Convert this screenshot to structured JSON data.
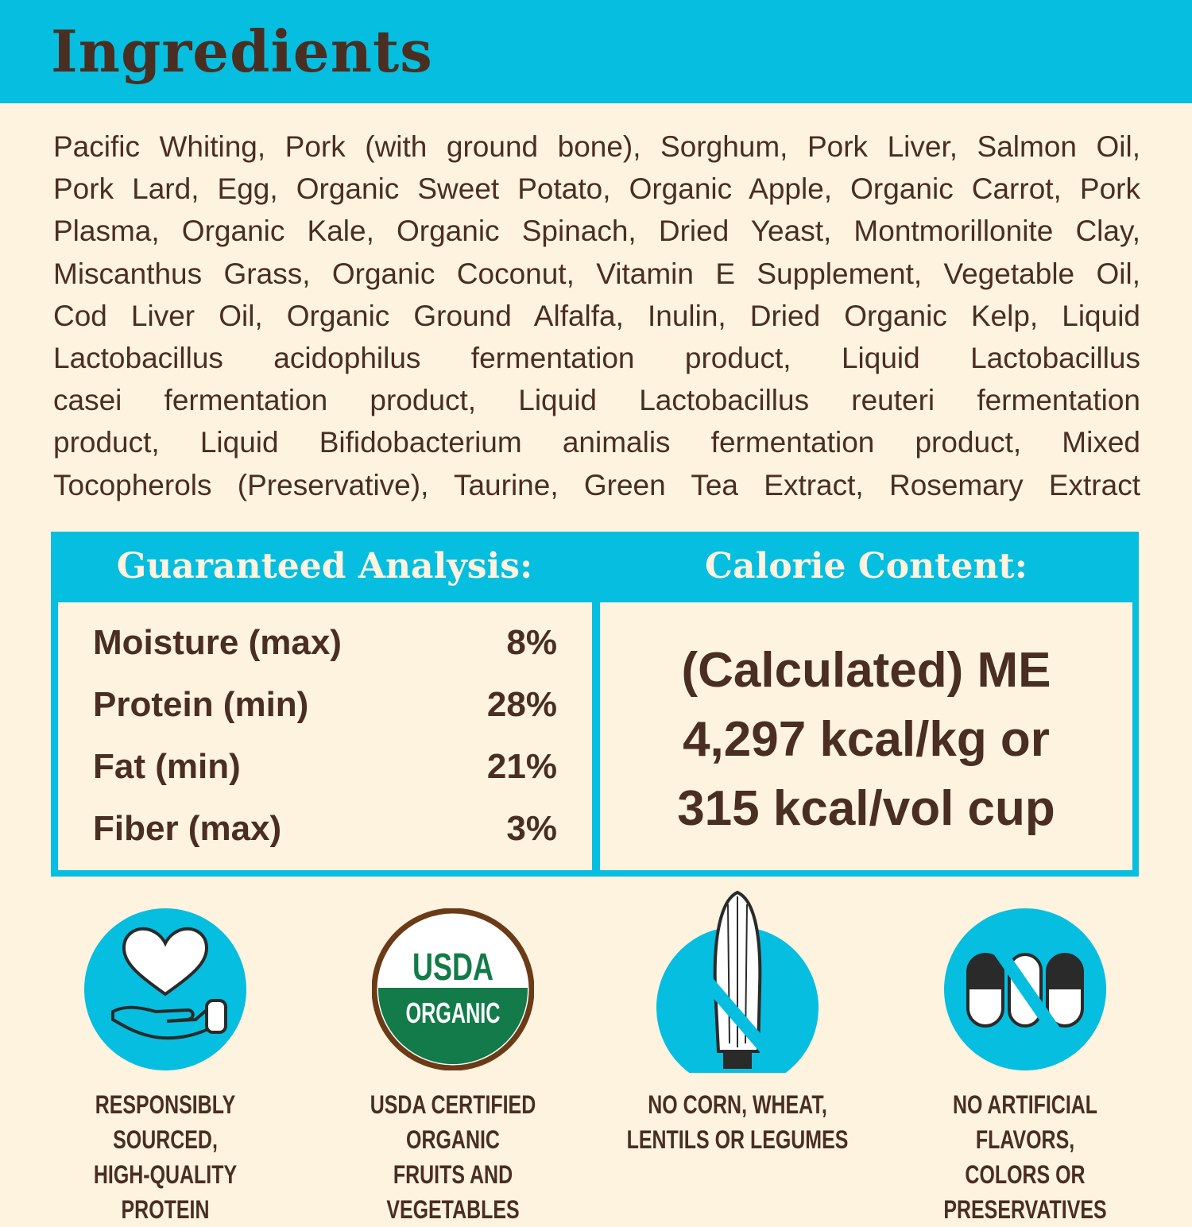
{
  "title": "Ingredients",
  "ingredients_lines": [
    "Pacific Whiting, Pork (with ground bone), Sorghum, Pork Liver, Salmon Oil,",
    "Pork Lard, Egg, Organic Sweet Potato, Organic Apple, Organic Carrot, Pork",
    "Plasma, Organic Kale, Organic Spinach, Dried Yeast, Montmorillonite Clay,",
    "Miscanthus Grass, Organic Coconut, Vitamin E Supplement, Vegetable Oil,",
    "Cod Liver Oil, Organic Ground Alfalfa, Inulin, Dried Organic Kelp, Liquid",
    "Lactobacillus acidophilus fermentation product, Liquid Lactobacillus",
    "casei fermentation product, Liquid Lactobacillus reuteri fermentation",
    "product, Liquid Bifidobacterium animalis fermentation product, Mixed",
    "Tocopherols (Preservative), Taurine, Green Tea Extract, Rosemary Extract"
  ],
  "analysis": {
    "heading": "Guaranteed Analysis:",
    "rows": [
      {
        "label": "Moisture (max)",
        "value": "8%"
      },
      {
        "label": "Protein (min)",
        "value": "28%"
      },
      {
        "label": "Fat (min)",
        "value": "21%"
      },
      {
        "label": "Fiber (max)",
        "value": "3%"
      }
    ]
  },
  "calorie": {
    "heading": "Calorie Content:",
    "lines": [
      "(Calculated) ME",
      "4,297 kcal/kg or",
      "315 kcal/vol cup"
    ]
  },
  "badges": [
    {
      "icon": "heart-hand-icon",
      "line1": "RESPONSIBLY SOURCED,",
      "line2": "HIGH-QUALITY PROTEIN"
    },
    {
      "icon": "usda-organic-seal",
      "seal_top": "USDA",
      "seal_bottom": "ORGANIC",
      "line1": "USDA CERTIFIED ORGANIC",
      "line2": "FRUITS AND VEGETABLES"
    },
    {
      "icon": "no-corn-icon",
      "line1": "NO CORN, WHEAT,",
      "line2": "LENTILS OR LEGUMES"
    },
    {
      "icon": "no-capsules-icon",
      "line1": "NO ARTIFICIAL FLAVORS,",
      "line2": "COLORS OR PRESERVATIVES"
    }
  ],
  "colors": {
    "accent": "#06bedf",
    "background": "#fdf3df",
    "text": "#4a2e22",
    "usda_green": "#137a4a"
  }
}
